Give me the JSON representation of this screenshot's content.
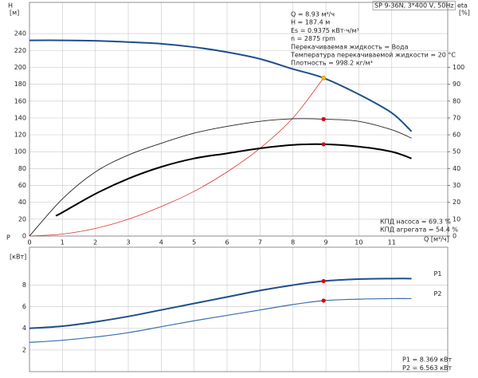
{
  "chart_data": [
    {
      "type": "line",
      "title": "SP 9-36N, 3*400 V, 50Hz",
      "ylabel": "H",
      "yunit": "[м]",
      "y2label": "eta",
      "y2unit": "[%]",
      "xlabel": "Q [м³/ч]",
      "xlim": [
        0,
        12.7
      ],
      "xticks": [
        0,
        1,
        2,
        3,
        4,
        5,
        6,
        7,
        8,
        9,
        10,
        11
      ],
      "show_xtick_labels": true,
      "ylim": [
        0,
        277
      ],
      "yticks": [
        0,
        20,
        40,
        60,
        80,
        100,
        120,
        140,
        160,
        180,
        200,
        220,
        240
      ],
      "y2lim": [
        0,
        138.5
      ],
      "y2ticks": [
        0,
        10,
        20,
        30,
        40,
        50,
        60,
        70,
        80,
        90,
        100
      ],
      "grid": true,
      "annotations": [
        "Q = 8.93 м³/ч",
        "H = 187.4 м",
        "Es = 0.9375 кВт·ч/м³",
        "n = 2875 rpm",
        "Перекачиваемая жидкость = Вода",
        "Температура перекачиваемой жидкости = 20 °C",
        "Плотность = 998.2 кг/м³"
      ],
      "efficiency_labels": [
        "КПД насоса = 69.3 %",
        "КПД агрегата = 54.4 %"
      ],
      "series": [
        {
          "color": "#e03030",
          "line_width": 0.8,
          "x": [
            0,
            1,
            2,
            3,
            4,
            5,
            6,
            7,
            8,
            8.93
          ],
          "values": [
            0,
            2.4,
            9,
            20,
            35,
            53,
            76,
            104,
            140,
            187.4
          ]
        },
        {
          "color": "#1f4e8c",
          "line_width": 2,
          "x": [
            0,
            1,
            2,
            3,
            4,
            5,
            6,
            7,
            8,
            8.93,
            10,
            11,
            11.6
          ],
          "values": [
            232,
            232,
            231.5,
            230,
            228,
            224,
            218,
            210,
            198,
            187.4,
            168,
            146,
            124
          ],
          "point": {
            "x": 8.93,
            "y": 187.4,
            "color": "#f5b800"
          }
        },
        {
          "axis": "y2",
          "color": "#222222",
          "line_width": 0.9,
          "x": [
            0,
            1,
            2,
            3,
            4,
            5,
            6,
            7,
            8,
            8.93,
            10,
            11,
            11.6
          ],
          "values": [
            0,
            22,
            38,
            48,
            55,
            61,
            65,
            68,
            69.5,
            69.3,
            68,
            63,
            58
          ],
          "point": {
            "x": 8.93,
            "y": 69.3,
            "color": "#e00000"
          }
        },
        {
          "axis": "y2",
          "color": "#000000",
          "line_width": 2,
          "x": [
            0.8,
            1,
            2,
            3,
            4,
            5,
            6,
            7,
            8,
            8.93,
            10,
            11,
            11.6
          ],
          "values": [
            12,
            14,
            25,
            34,
            41,
            46,
            49,
            52,
            54,
            54.4,
            53,
            50,
            46
          ],
          "point": {
            "x": 8.93,
            "y": 54.4,
            "color": "#e00000"
          }
        }
      ]
    },
    {
      "type": "line",
      "ylabel": "P",
      "yunit": "[кВт]",
      "xlim": [
        0,
        12.7
      ],
      "xticks": [
        0,
        1,
        2,
        3,
        4,
        5,
        6,
        7,
        8,
        9,
        10,
        11
      ],
      "show_xtick_labels": false,
      "ylim": [
        0,
        11.5
      ],
      "yticks": [
        2,
        4,
        6,
        8
      ],
      "grid": true,
      "annotations": [
        "P1 = 8.369 кВт",
        "P2 = 6.563 кВт"
      ],
      "series": [
        {
          "name": "P1",
          "color": "#1f4e8c",
          "line_width": 2,
          "x": [
            0,
            1,
            2,
            3,
            4,
            5,
            6,
            7,
            8,
            8.93,
            10,
            11,
            11.6
          ],
          "values": [
            4.0,
            4.2,
            4.6,
            5.1,
            5.7,
            6.3,
            6.9,
            7.5,
            8.0,
            8.369,
            8.55,
            8.6,
            8.6
          ],
          "point": {
            "x": 8.93,
            "y": 8.369,
            "color": "#e00000"
          }
        },
        {
          "name": "P2",
          "color": "#3a6fb0",
          "line_width": 1.2,
          "x": [
            0,
            1,
            2,
            3,
            4,
            5,
            6,
            7,
            8,
            8.93,
            10,
            11,
            11.6
          ],
          "values": [
            2.7,
            2.9,
            3.2,
            3.6,
            4.15,
            4.7,
            5.2,
            5.7,
            6.2,
            6.563,
            6.7,
            6.75,
            6.75
          ],
          "point": {
            "x": 8.93,
            "y": 6.563,
            "color": "#e00000"
          }
        }
      ]
    }
  ]
}
